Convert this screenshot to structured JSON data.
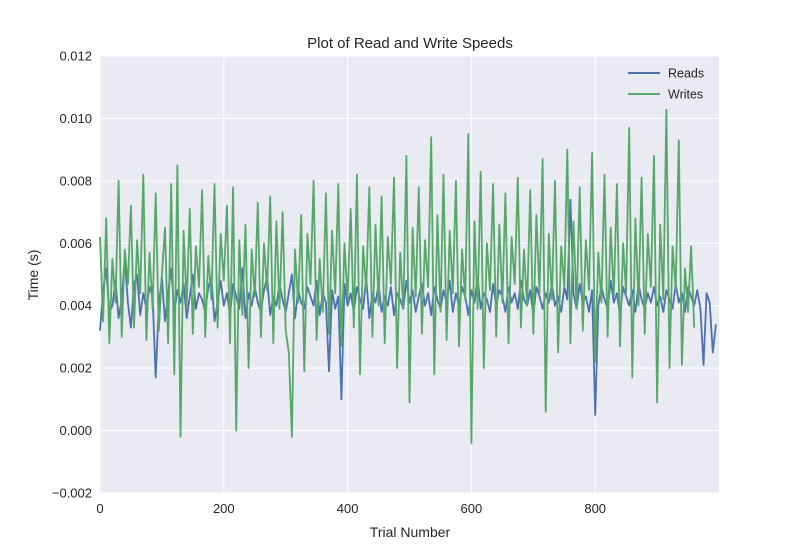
{
  "chart_data": {
    "type": "line",
    "title": "Plot of Read and Write Speeds",
    "xlabel": "Trial Number",
    "ylabel": "Time (s)",
    "xlim": [
      0,
      1000
    ],
    "ylim": [
      -0.002,
      0.012
    ],
    "x_ticks": [
      0,
      200,
      400,
      600,
      800
    ],
    "x_tick_labels": [
      "0",
      "200",
      "400",
      "600",
      "800"
    ],
    "y_ticks": [
      -0.002,
      0,
      0.002,
      0.004,
      0.006,
      0.008,
      0.01,
      0.012
    ],
    "y_tick_labels": [
      "−0.002",
      "0.000",
      "0.002",
      "0.004",
      "0.006",
      "0.008",
      "0.010",
      "0.012"
    ],
    "grid": true,
    "legend_position": "top-right",
    "colors": {
      "background": "#EAEAF2",
      "grid": "#FFFFFF",
      "reads": "#4C72B0",
      "writes": "#55A868"
    },
    "series": [
      {
        "name": "Reads",
        "color": "#4C72B0",
        "x_start": 0,
        "x_step": 5,
        "values": [
          0.0032,
          0.0045,
          0.0052,
          0.0038,
          0.004,
          0.0048,
          0.0036,
          0.0042,
          0.0055,
          0.0041,
          0.0033,
          0.0047,
          0.005,
          0.0037,
          0.0044,
          0.0039,
          0.0046,
          0.0043,
          0.0017,
          0.004,
          0.0049,
          0.0035,
          0.0044,
          0.0052,
          0.0038,
          0.0045,
          0.0041,
          0.0047,
          0.0036,
          0.0043,
          0.005,
          0.0039,
          0.0044,
          0.0042,
          0.0038,
          0.0046,
          0.0049,
          0.0035,
          0.0041,
          0.0048,
          0.004,
          0.0044,
          0.0037,
          0.0047,
          0.0043,
          0.0039,
          0.0052,
          0.0036,
          0.0044,
          0.004,
          0.0046,
          0.0041,
          0.0038,
          0.0045,
          0.0049,
          0.0037,
          0.0043,
          0.004,
          0.0047,
          0.0042,
          0.0038,
          0.0044,
          0.005,
          0.0036,
          0.0045,
          0.0041,
          0.0039,
          0.0046,
          0.0043,
          0.004,
          0.0048,
          0.0037,
          0.0044,
          0.0041,
          0.0019,
          0.0045,
          0.0039,
          0.0043,
          0.001,
          0.0047,
          0.004,
          0.0044,
          0.0038,
          0.0046,
          0.0042,
          0.0039,
          0.0049,
          0.0036,
          0.0044,
          0.0041,
          0.0047,
          0.0038,
          0.0043,
          0.004,
          0.0046,
          0.0037,
          0.0044,
          0.0042,
          0.0039,
          0.0048,
          0.0041,
          0.0045,
          0.0038,
          0.0043,
          0.0047,
          0.004,
          0.0044,
          0.0037,
          0.0046,
          0.0042,
          0.0039,
          0.0045,
          0.0041,
          0.0048,
          0.0038,
          0.0044,
          0.004,
          0.0046,
          0.0043,
          0.0037,
          0.0045,
          0.0041,
          0.0049,
          0.0039,
          0.0044,
          0.0042,
          0.0038,
          0.0047,
          0.004,
          0.0045,
          0.0043,
          0.0038,
          0.0046,
          0.0041,
          0.0044,
          0.0039,
          0.0048,
          0.0042,
          0.004,
          0.0045,
          0.0037,
          0.0046,
          0.0043,
          0.0039,
          0.0044,
          0.0041,
          0.0047,
          0.004,
          0.0043,
          0.0038,
          0.0046,
          0.0042,
          0.0074,
          0.0044,
          0.0039,
          0.0047,
          0.0041,
          0.0043,
          0.0038,
          0.0045,
          0.0005,
          0.004,
          0.0046,
          0.0042,
          0.0039,
          0.0048,
          0.0041,
          0.0044,
          0.0037,
          0.0046,
          0.0043,
          0.004,
          0.0045,
          0.0038,
          0.0047,
          0.0042,
          0.0039,
          0.0044,
          0.0041,
          0.0046,
          0.004,
          0.0043,
          0.0038,
          0.0045,
          0.0042,
          0.0039,
          0.0047,
          0.0041,
          0.0044,
          0.0038,
          0.0046,
          0.0043,
          0.004,
          0.0045,
          0.0039,
          0.0021,
          0.0044,
          0.0041,
          0.0025,
          0.0034
        ]
      },
      {
        "name": "Writes",
        "color": "#55A868",
        "x_start": 0,
        "x_step": 5,
        "values": [
          0.0062,
          0.0035,
          0.0068,
          0.0028,
          0.0055,
          0.0041,
          0.008,
          0.003,
          0.0058,
          0.0047,
          0.0072,
          0.0033,
          0.0061,
          0.0044,
          0.0082,
          0.0029,
          0.0057,
          0.0039,
          0.0076,
          0.0032,
          0.005,
          0.0065,
          0.0028,
          0.0079,
          0.0018,
          0.0085,
          -0.0002,
          0.0064,
          0.004,
          0.0071,
          0.0031,
          0.0059,
          0.0046,
          0.0077,
          0.003,
          0.0056,
          0.0042,
          0.0079,
          0.0033,
          0.0063,
          0.0048,
          0.0072,
          0.0028,
          0.0078,
          0.0,
          0.0061,
          0.0037,
          0.0066,
          0.002,
          0.0058,
          0.0043,
          0.0073,
          0.003,
          0.006,
          0.0045,
          0.0075,
          0.0028,
          0.0067,
          0.0039,
          0.007,
          0.0032,
          0.0025,
          -0.0002,
          0.0058,
          0.0041,
          0.0069,
          0.0019,
          0.0063,
          0.0047,
          0.008,
          0.0029,
          0.0055,
          0.0038,
          0.0076,
          0.0031,
          0.0064,
          0.0044,
          0.0079,
          0.0027,
          0.006,
          0.0042,
          0.0071,
          0.0033,
          0.0082,
          0.0018,
          0.0059,
          0.0045,
          0.0078,
          0.003,
          0.0066,
          0.004,
          0.0075,
          0.0028,
          0.0062,
          0.0047,
          0.0081,
          0.002,
          0.0057,
          0.0039,
          0.0088,
          0.0009,
          0.0065,
          0.0043,
          0.0078,
          0.0031,
          0.0061,
          0.0046,
          0.0094,
          0.0018,
          0.0069,
          0.0038,
          0.0082,
          0.0029,
          0.0064,
          0.0044,
          0.008,
          0.0027,
          0.0058,
          0.0042,
          0.0095,
          -0.0004,
          0.0067,
          0.0039,
          0.0083,
          0.002,
          0.006,
          0.0045,
          0.0079,
          0.003,
          0.0066,
          0.0041,
          0.0076,
          0.0028,
          0.0062,
          0.0047,
          0.0081,
          0.0033,
          0.0058,
          0.004,
          0.0077,
          0.0031,
          0.0069,
          0.0044,
          0.0087,
          0.0006,
          0.0063,
          0.0042,
          0.008,
          0.0025,
          0.0059,
          0.0046,
          0.009,
          0.0028,
          0.0067,
          0.0039,
          0.0078,
          0.0032,
          0.0061,
          0.0045,
          0.0089,
          0.0022,
          0.0057,
          0.0041,
          0.0082,
          0.003,
          0.0065,
          0.0043,
          0.0079,
          0.0027,
          0.006,
          0.0044,
          0.0097,
          0.0017,
          0.0068,
          0.004,
          0.0081,
          0.0031,
          0.0063,
          0.0046,
          0.0088,
          0.0009,
          0.0066,
          0.0042,
          0.0103,
          0.002,
          0.0059,
          0.0045,
          0.0093,
          0.0021,
          0.0052,
          0.0038,
          0.0059,
          0.0033
        ]
      }
    ]
  }
}
